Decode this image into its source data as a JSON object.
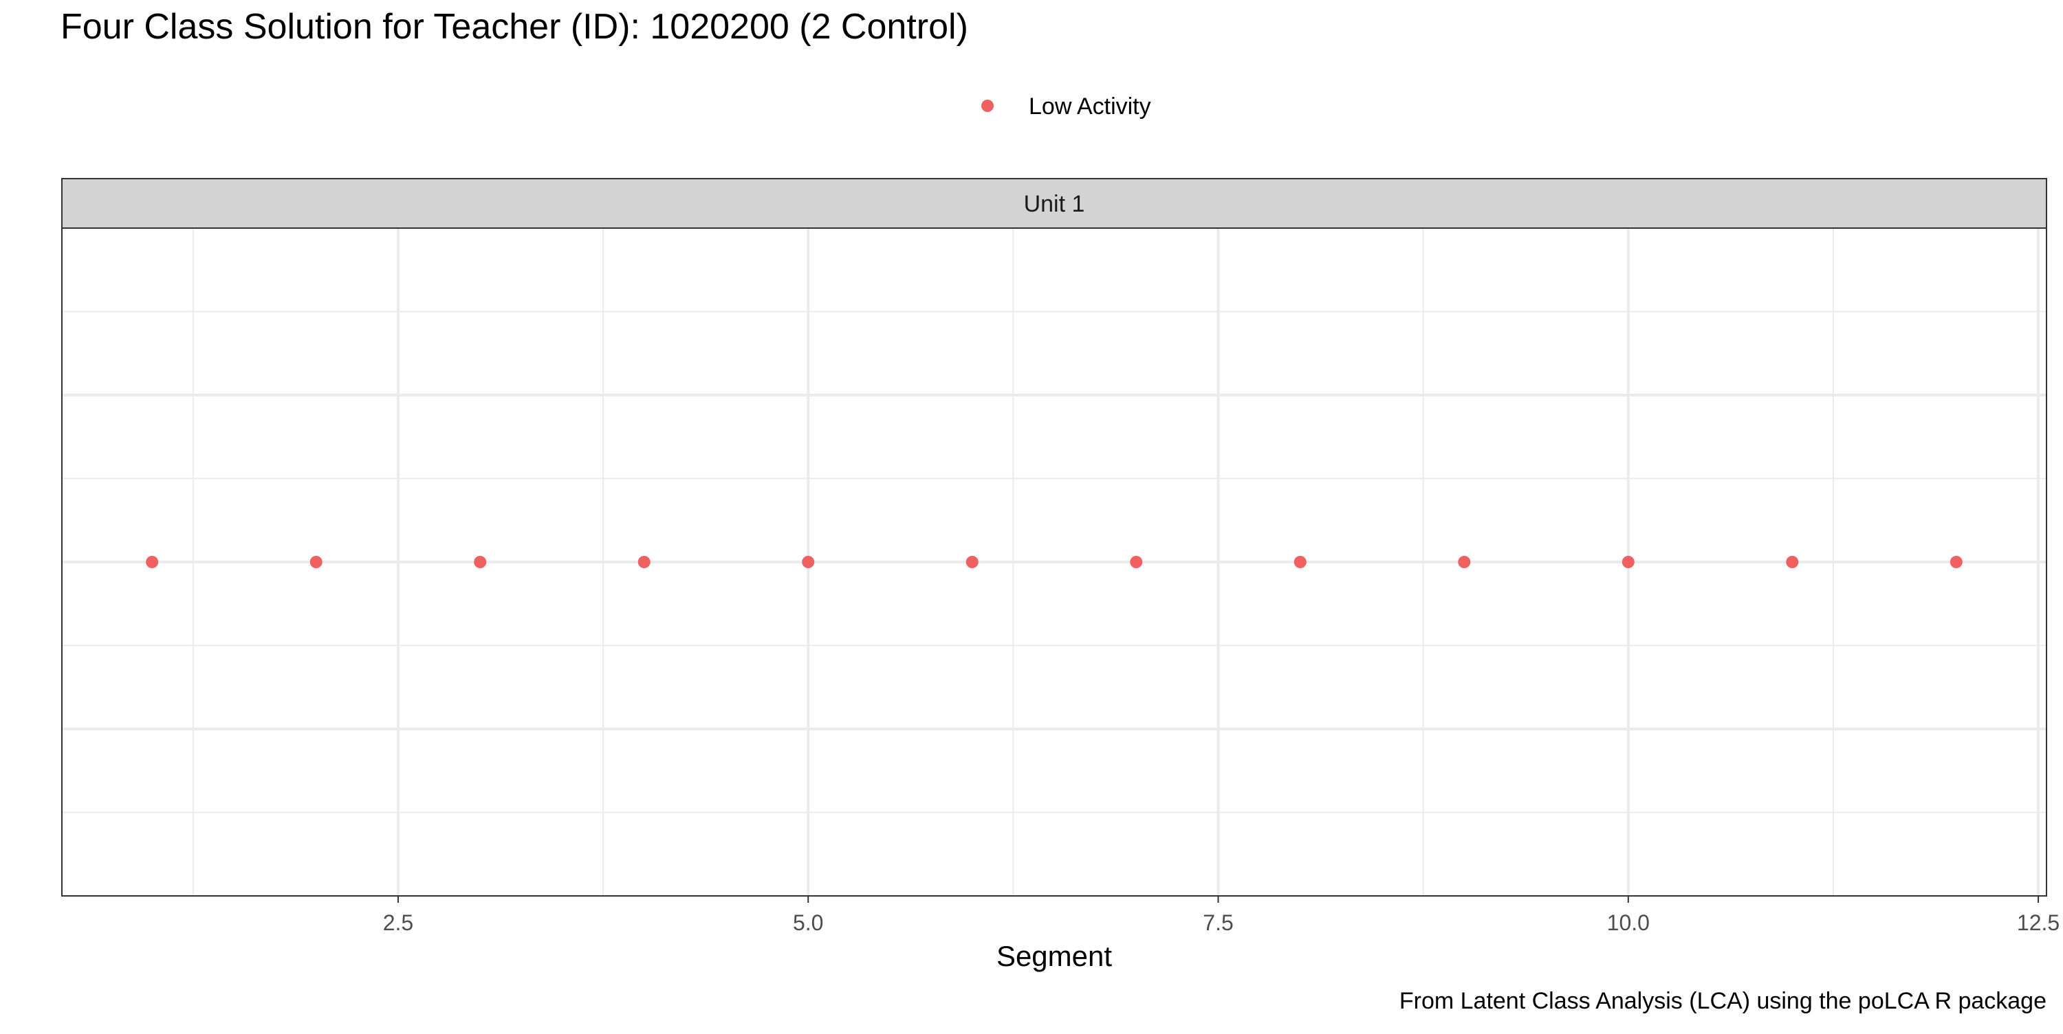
{
  "chart_data": {
    "type": "scatter",
    "title": "Four Class Solution for Teacher (ID): 1020200 (2 Control)",
    "facet_label": "Unit 1",
    "xlabel": "Segment",
    "ylabel": "",
    "caption": "From Latent Class Analysis (LCA) using the poLCA R package",
    "legend_position": "top",
    "grid": true,
    "xlim": [
      0.45,
      12.55
    ],
    "x_ticks": [
      2.5,
      5.0,
      7.5,
      10.0,
      12.5
    ],
    "x_tick_labels": [
      "2.5",
      "5.0",
      "7.5",
      "10.0",
      "12.5"
    ],
    "y_ticks_visible": false,
    "series": [
      {
        "name": "Low Activity",
        "color": "#ee6160",
        "x": [
          1,
          2,
          3,
          4,
          5,
          6,
          7,
          8,
          9,
          10,
          11,
          12
        ]
      }
    ]
  }
}
